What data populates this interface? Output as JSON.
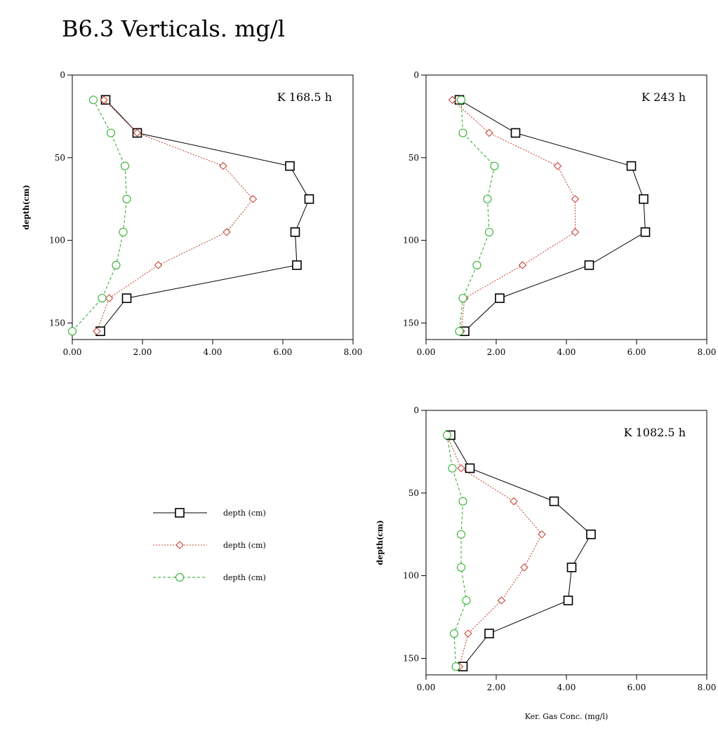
{
  "page": {
    "title": "B6.3 Verticals. mg/l"
  },
  "legend": {
    "items": [
      {
        "label": "depth (cm)",
        "series": "s1"
      },
      {
        "label": "depth (cm)",
        "series": "s2"
      },
      {
        "label": "depth (cm)",
        "series": "s3"
      }
    ]
  },
  "styles": {
    "s1": {
      "color": "#000000",
      "marker": "square",
      "dash": ""
    },
    "s2": {
      "color": "#c0392b",
      "marker": "diamond",
      "dash": "2,2"
    },
    "s3": {
      "color": "#22aa22",
      "marker": "circle",
      "dash": "4,3"
    }
  },
  "chart_data": [
    {
      "type": "line",
      "title": "K 168.5 h",
      "xlabel": "",
      "ylabel": "depth(cm)",
      "xlim": [
        0,
        8
      ],
      "ylim": [
        0,
        160
      ],
      "y_inverted": true,
      "xticks": [
        "0.00",
        "2.00",
        "4.00",
        "6.00",
        "8.00"
      ],
      "yticks": [
        "0",
        "50",
        "100",
        "150"
      ],
      "y": [
        15,
        35,
        55,
        75,
        95,
        115,
        135,
        155
      ],
      "series": [
        {
          "style": "s1",
          "x": [
            0.95,
            1.85,
            6.2,
            6.75,
            6.35,
            6.4,
            1.55,
            0.8
          ]
        },
        {
          "style": "s2",
          "x": [
            0.9,
            1.85,
            4.3,
            5.15,
            4.4,
            2.45,
            1.05,
            0.7
          ]
        },
        {
          "style": "s3",
          "x": [
            0.6,
            1.1,
            1.5,
            1.55,
            1.45,
            1.25,
            0.85,
            0.0
          ]
        }
      ]
    },
    {
      "type": "line",
      "title": "K 243 h",
      "xlabel": "",
      "ylabel": "",
      "xlim": [
        0,
        8
      ],
      "ylim": [
        0,
        160
      ],
      "y_inverted": true,
      "xticks": [
        "0.00",
        "2.00",
        "4.00",
        "6.00",
        "8.00"
      ],
      "yticks": [
        "0",
        "50",
        "100",
        "150"
      ],
      "y": [
        15,
        35,
        55,
        75,
        95,
        115,
        135,
        155
      ],
      "series": [
        {
          "style": "s1",
          "x": [
            0.95,
            2.55,
            5.85,
            6.2,
            6.25,
            4.65,
            2.1,
            1.1
          ]
        },
        {
          "style": "s2",
          "x": [
            0.75,
            1.8,
            3.75,
            4.25,
            4.25,
            2.75,
            1.1,
            1.0
          ]
        },
        {
          "style": "s3",
          "x": [
            1.0,
            1.05,
            1.95,
            1.75,
            1.8,
            1.45,
            1.05,
            0.95
          ]
        }
      ]
    },
    {
      "type": "line",
      "title": "K 1082.5 h",
      "xlabel": "Ker. Gas Conc. (mg/l)",
      "ylabel": "depth(cm)",
      "xlim": [
        0,
        8
      ],
      "ylim": [
        0,
        160
      ],
      "y_inverted": true,
      "xticks": [
        "0.00",
        "2.00",
        "4.00",
        "6.00",
        "8.00"
      ],
      "yticks": [
        "0",
        "50",
        "100",
        "150"
      ],
      "y": [
        15,
        35,
        55,
        75,
        95,
        115,
        135,
        155
      ],
      "series": [
        {
          "style": "s1",
          "x": [
            0.7,
            1.25,
            3.65,
            4.7,
            4.15,
            4.05,
            1.8,
            1.05
          ]
        },
        {
          "style": "s2",
          "x": [
            0.6,
            1.0,
            2.5,
            3.3,
            2.8,
            2.15,
            1.2,
            0.95
          ]
        },
        {
          "style": "s3",
          "x": [
            0.6,
            0.75,
            1.05,
            1.0,
            1.0,
            1.15,
            0.8,
            0.85
          ]
        }
      ]
    }
  ]
}
